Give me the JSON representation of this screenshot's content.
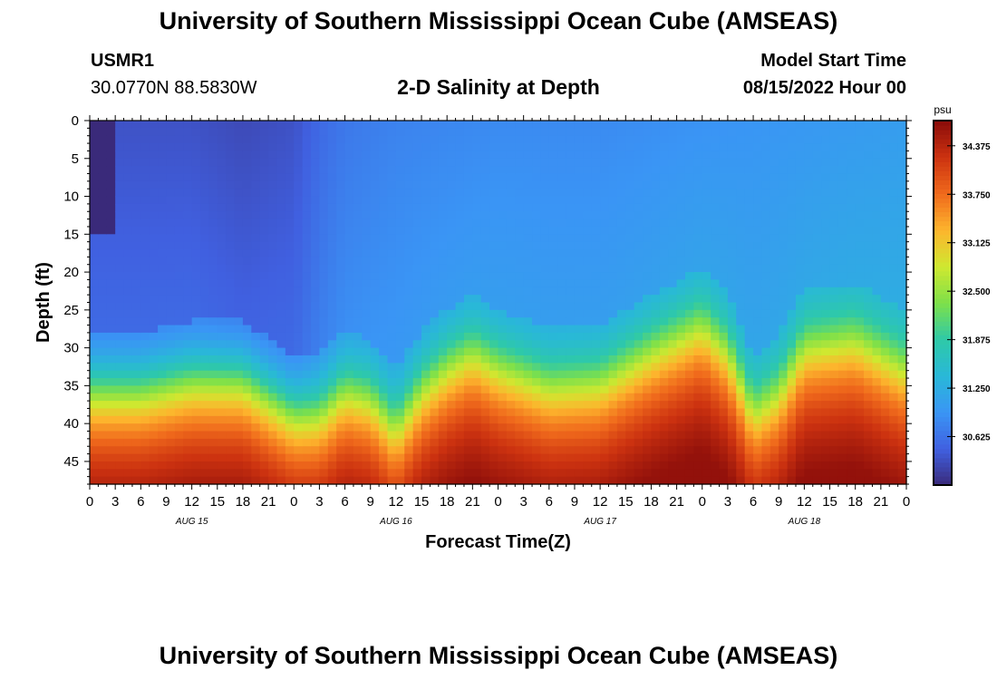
{
  "header": {
    "title": "University of Southern Mississippi Ocean Cube (AMSEAS)",
    "station_id": "USMR1",
    "station_coords": "30.0770N  88.5830W",
    "chart_title": "2-D Salinity at Depth",
    "model_start_label": "Model Start Time",
    "model_start_value": "08/15/2022 Hour 00"
  },
  "footer": {
    "title": "University of Southern Mississippi Ocean Cube (AMSEAS)"
  },
  "colors": {
    "colormap": [
      "#3a2a7a",
      "#4060e0",
      "#3a95f5",
      "#29b8d8",
      "#2ec9a8",
      "#7de04a",
      "#cfe830",
      "#fdb52d",
      "#f06a1c",
      "#cc3210",
      "#8a0c0a"
    ]
  },
  "chart_data": {
    "type": "heatmap",
    "title": "2-D Salinity at Depth",
    "xlabel": "Forecast Time(Z)",
    "ylabel": "Depth (ft)",
    "x_unit": "hours",
    "xlim": [
      0,
      96
    ],
    "ylim": [
      48,
      0
    ],
    "x_ticks": [
      0,
      3,
      6,
      9,
      12,
      15,
      18,
      21,
      24,
      27,
      30,
      33,
      36,
      39,
      42,
      45,
      48,
      51,
      54,
      57,
      60,
      63,
      66,
      69,
      72,
      75,
      78,
      81,
      84,
      87,
      90,
      93,
      96
    ],
    "x_tick_labels": [
      "0",
      "3",
      "6",
      "9",
      "12",
      "15",
      "18",
      "21",
      "0",
      "3",
      "6",
      "9",
      "12",
      "15",
      "18",
      "21",
      "0",
      "3",
      "6",
      "9",
      "12",
      "15",
      "18",
      "21",
      "0",
      "3",
      "6",
      "9",
      "12",
      "15",
      "18",
      "21",
      "0"
    ],
    "day_labels": [
      {
        "hour": 12,
        "label": "AUG 15"
      },
      {
        "hour": 36,
        "label": "AUG 16"
      },
      {
        "hour": 60,
        "label": "AUG 17"
      },
      {
        "hour": 84,
        "label": "AUG 18"
      }
    ],
    "y_ticks": [
      0,
      5,
      10,
      15,
      20,
      25,
      30,
      35,
      40,
      45
    ],
    "colorbar": {
      "unit": "psu",
      "min": 30.0,
      "max": 34.7,
      "tick_values": [
        34.375,
        33.75,
        33.125,
        32.5,
        31.875,
        31.25,
        30.625
      ],
      "tick_labels": [
        "34.375",
        "33.750",
        "33.125",
        "32.500",
        "31.875",
        "31.250",
        "30.625"
      ]
    },
    "halocline_depth": {
      "hours": [
        0,
        6,
        12,
        18,
        24,
        27,
        30,
        33,
        36,
        39,
        42,
        45,
        48,
        54,
        60,
        66,
        72,
        75,
        78,
        81,
        84,
        90,
        96
      ],
      "depth_ft": [
        36,
        36,
        34.5,
        34.5,
        39,
        39,
        36,
        37,
        41,
        36,
        33,
        31,
        33,
        35.5,
        35,
        31,
        27.5,
        31,
        39,
        36.5,
        30.5,
        29.5,
        33.5
      ]
    },
    "surface_salinity": {
      "hours": [
        0,
        3,
        6,
        12,
        18,
        24,
        27,
        30,
        36,
        48,
        60,
        72,
        84,
        96
      ],
      "psu": [
        30.35,
        30.35,
        30.35,
        30.35,
        30.28,
        30.35,
        30.55,
        30.68,
        30.78,
        30.85,
        30.85,
        30.92,
        30.98,
        31.05
      ]
    }
  }
}
